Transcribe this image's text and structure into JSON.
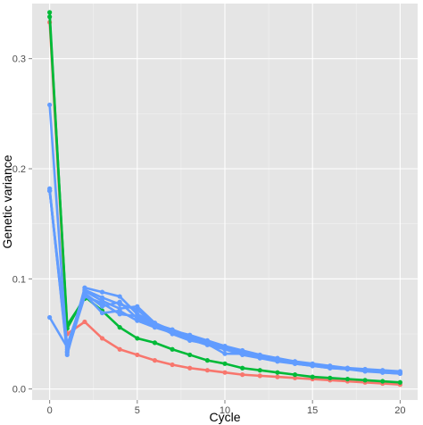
{
  "chart_data": {
    "type": "line",
    "title": "",
    "xlabel": "Cycle",
    "ylabel": "Genetic variance",
    "xlim": [
      -1,
      21
    ],
    "ylim": [
      -0.01,
      0.35
    ],
    "x_ticks": [
      0,
      5,
      10,
      15,
      20
    ],
    "y_ticks": [
      0.0,
      0.1,
      0.2,
      0.3
    ],
    "x_tick_labels": [
      "0",
      "5",
      "10",
      "15",
      "20"
    ],
    "y_tick_labels": [
      "0.0",
      "0.1",
      "0.2",
      "0.3"
    ],
    "grid": true,
    "legend": "none",
    "panel_color": "#e5e5e5",
    "grid_color": "#ffffff",
    "series": [
      {
        "color": "#f8766d",
        "x": [
          0,
          1,
          2,
          3,
          4,
          5,
          6,
          7,
          8,
          9,
          10,
          11,
          12,
          13,
          14,
          15,
          16,
          17,
          18,
          19,
          20
        ],
        "values": [
          0.333,
          0.05,
          0.061,
          0.046,
          0.036,
          0.031,
          0.026,
          0.022,
          0.019,
          0.017,
          0.015,
          0.013,
          0.012,
          0.011,
          0.01,
          0.009,
          0.008,
          0.007,
          0.006,
          0.005,
          0.004
        ]
      },
      {
        "color": "#00ba38",
        "x": [
          0,
          1,
          2,
          3,
          4,
          5,
          6,
          7,
          8,
          9,
          10,
          11,
          12,
          13,
          14,
          15,
          16,
          17,
          18,
          19,
          20
        ],
        "values": [
          0.342,
          0.055,
          0.084,
          0.071,
          0.056,
          0.046,
          0.042,
          0.036,
          0.031,
          0.026,
          0.023,
          0.019,
          0.017,
          0.015,
          0.013,
          0.011,
          0.01,
          0.009,
          0.008,
          0.007,
          0.006
        ]
      },
      {
        "color": "#00ba38",
        "x": [
          0,
          1,
          2
        ],
        "values": [
          0.338,
          0.058,
          0.082
        ]
      },
      {
        "color": "#619cff",
        "x": [
          0,
          1,
          2,
          3,
          4,
          5,
          6,
          7,
          8,
          9,
          10,
          11,
          12,
          13,
          14,
          15,
          16,
          17,
          18,
          19,
          20
        ],
        "values": [
          0.258,
          0.034,
          0.092,
          0.088,
          0.084,
          0.068,
          0.06,
          0.052,
          0.047,
          0.043,
          0.036,
          0.031,
          0.028,
          0.025,
          0.023,
          0.021,
          0.019,
          0.018,
          0.017,
          0.016,
          0.015
        ]
      },
      {
        "color": "#619cff",
        "x": [
          0,
          1,
          2,
          3,
          4,
          5,
          6,
          7,
          8,
          9,
          10,
          11,
          12,
          13,
          14,
          15,
          16,
          17,
          18,
          19,
          20
        ],
        "values": [
          0.182,
          0.031,
          0.09,
          0.083,
          0.077,
          0.072,
          0.059,
          0.054,
          0.048,
          0.043,
          0.038,
          0.034,
          0.03,
          0.027,
          0.024,
          0.022,
          0.02,
          0.019,
          0.017,
          0.016,
          0.015
        ]
      },
      {
        "color": "#619cff",
        "x": [
          0,
          1,
          2,
          3,
          4,
          5,
          6,
          7,
          8,
          9,
          10,
          11,
          12,
          13,
          14,
          15,
          16,
          17,
          18,
          19,
          20
        ],
        "values": [
          0.18,
          0.036,
          0.087,
          0.075,
          0.079,
          0.064,
          0.057,
          0.052,
          0.046,
          0.042,
          0.037,
          0.033,
          0.03,
          0.027,
          0.025,
          0.022,
          0.02,
          0.019,
          0.017,
          0.016,
          0.014
        ]
      },
      {
        "color": "#619cff",
        "x": [
          0,
          1,
          2,
          3,
          4,
          5,
          6,
          7,
          8,
          9,
          10,
          11,
          12,
          13,
          14,
          15,
          16,
          17,
          18,
          19,
          20
        ],
        "values": [
          0.065,
          0.038,
          0.089,
          0.08,
          0.073,
          0.075,
          0.06,
          0.053,
          0.049,
          0.044,
          0.039,
          0.035,
          0.031,
          0.028,
          0.025,
          0.023,
          0.021,
          0.019,
          0.018,
          0.017,
          0.016
        ]
      },
      {
        "color": "#619cff",
        "x": [
          0,
          1,
          2,
          3,
          4,
          5,
          6,
          7,
          8,
          9,
          10,
          11,
          12,
          13,
          14,
          15,
          16,
          17,
          18,
          19,
          20
        ],
        "values": [
          0.18,
          0.04,
          0.086,
          0.069,
          0.071,
          0.062,
          0.056,
          0.051,
          0.045,
          0.04,
          0.036,
          0.033,
          0.029,
          0.026,
          0.024,
          0.022,
          0.02,
          0.018,
          0.017,
          0.015,
          0.014
        ]
      },
      {
        "color": "#619cff",
        "x": [
          0,
          1,
          2,
          3,
          4,
          5,
          6,
          7,
          8,
          9,
          10,
          11,
          12,
          13,
          14,
          15,
          16,
          17,
          18,
          19,
          20
        ],
        "values": [
          0.18,
          0.033,
          0.084,
          0.078,
          0.068,
          0.066,
          0.058,
          0.05,
          0.044,
          0.041,
          0.032,
          0.032,
          0.029,
          0.026,
          0.023,
          0.021,
          0.019,
          0.018,
          0.016,
          0.015,
          0.014
        ]
      }
    ]
  }
}
